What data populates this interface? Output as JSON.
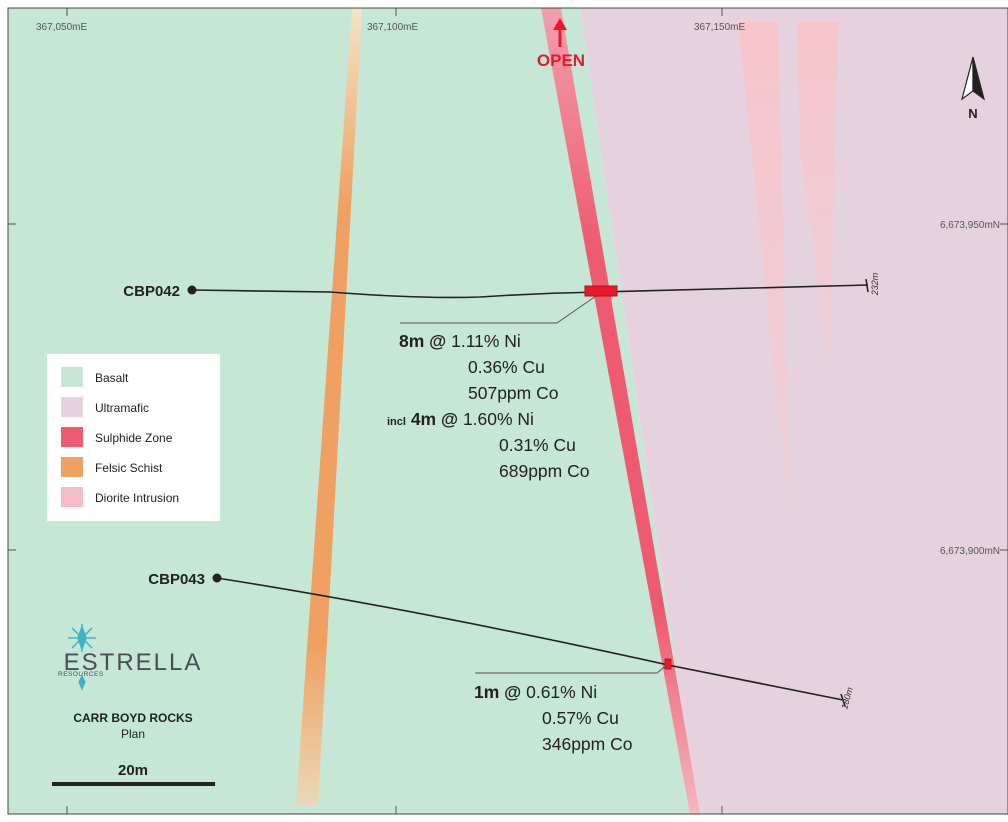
{
  "map": {
    "grid": {
      "eastings": [
        "367,050mE",
        "367,100mE",
        "367,150mE"
      ],
      "northings": [
        "6,673,950mN",
        "6,673,900mN"
      ]
    },
    "open_label": "OPEN",
    "north_label": "N",
    "legend": [
      {
        "label": "Basalt",
        "color": "#c6e6d6"
      },
      {
        "label": "Ultramafic",
        "color": "#e6d2de"
      },
      {
        "label": "Sulphide Zone",
        "color": "#ee5a6f"
      },
      {
        "label": "Felsic Schist",
        "color": "#f0a060"
      },
      {
        "label": "Diorite Intrusion",
        "color": "#f4bcc4"
      }
    ],
    "holes": [
      {
        "id": "CBP042",
        "depth": "232m"
      },
      {
        "id": "CBP043",
        "depth": "180m"
      }
    ],
    "intersections": [
      {
        "hole": "CBP042",
        "lines": [
          {
            "prefix": "",
            "bold": "8m @",
            "text": "1.11% Ni"
          },
          {
            "prefix": "",
            "bold": "",
            "text": "0.36% Cu"
          },
          {
            "prefix": "",
            "bold": "",
            "text": "507ppm Co"
          },
          {
            "prefix": "incl",
            "bold": "4m @",
            "text": "1.60% Ni"
          },
          {
            "prefix": "",
            "bold": "",
            "text": "0.31% Cu"
          },
          {
            "prefix": "",
            "bold": "",
            "text": "689ppm Co"
          }
        ]
      },
      {
        "hole": "CBP043",
        "lines": [
          {
            "prefix": "",
            "bold": "1m @",
            "text": "0.61% Ni"
          },
          {
            "prefix": "",
            "bold": "",
            "text": "0.57% Cu"
          },
          {
            "prefix": "",
            "bold": "",
            "text": "346ppm Co"
          }
        ]
      }
    ],
    "logo": {
      "name": "ESTRELLA",
      "sub": "RESOURCES"
    },
    "project": {
      "title": "CARR BOYD ROCKS",
      "subtitle": "Plan"
    },
    "scale_bar": "20m"
  }
}
